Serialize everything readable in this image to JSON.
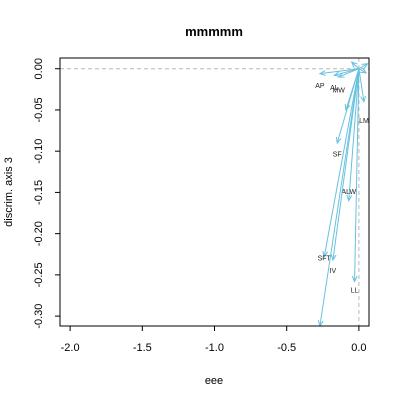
{
  "chart_data": {
    "type": "vector-biplot",
    "title": "mmmmm",
    "xlabel": "eee",
    "ylabel": "discrim. axis 3",
    "xlim": [
      -2.07,
      0.07
    ],
    "ylim": [
      -0.312,
      0.013
    ],
    "xticks": [
      {
        "value": -2.0,
        "label": "-2.0"
      },
      {
        "value": -1.5,
        "label": "-1.5"
      },
      {
        "value": -1.0,
        "label": "-1.0"
      },
      {
        "value": -0.5,
        "label": "-0.5"
      },
      {
        "value": 0.0,
        "label": "0.0"
      }
    ],
    "yticks": [
      {
        "value": 0.0,
        "label": "0.00"
      },
      {
        "value": -0.05,
        "label": "-0.05"
      },
      {
        "value": -0.1,
        "label": "-0.10"
      },
      {
        "value": -0.15,
        "label": "-0.15"
      },
      {
        "value": -0.2,
        "label": "-0.20"
      },
      {
        "value": -0.25,
        "label": "-0.25"
      },
      {
        "value": -0.3,
        "label": "-0.30"
      }
    ],
    "origin": {
      "x": 0.0,
      "y": 0.0
    },
    "reference_lines": {
      "x": 0.0,
      "y": 0.0
    },
    "vectors": [
      {
        "name": "AP",
        "x": -0.27,
        "y": -0.006,
        "label": "AP",
        "label_x": -0.27,
        "label_y": -0.02
      },
      {
        "name": "AL",
        "x": -0.17,
        "y": -0.008,
        "label": "AL",
        "label_x": -0.17,
        "label_y": -0.022
      },
      {
        "name": "MW",
        "x": -0.14,
        "y": -0.01,
        "label": "MW",
        "label_x": -0.14,
        "label_y": -0.025
      },
      {
        "name": "LM",
        "x": 0.035,
        "y": -0.04,
        "label": "LM",
        "label_x": 0.035,
        "label_y": -0.062
      },
      {
        "name": "SF",
        "x": -0.15,
        "y": -0.09,
        "label": "SF",
        "label_x": -0.15,
        "label_y": -0.103
      },
      {
        "name": "ALW",
        "x": -0.07,
        "y": -0.16,
        "label": "ALW",
        "label_x": -0.07,
        "label_y": -0.148
      },
      {
        "name": "SFT",
        "x": -0.24,
        "y": -0.228,
        "label": "SFT",
        "label_x": -0.24,
        "label_y": -0.229
      },
      {
        "name": "IV",
        "x": -0.18,
        "y": -0.232,
        "label": "IV",
        "label_x": -0.18,
        "label_y": -0.244
      },
      {
        "name": "LL",
        "x": -0.03,
        "y": -0.258,
        "label": "LL",
        "label_x": -0.03,
        "label_y": -0.268
      },
      {
        "name": "V10",
        "x": -0.27,
        "y": -0.312,
        "label": "",
        "label_x": -0.27,
        "label_y": -0.312
      },
      {
        "name": "V11",
        "x": -0.09,
        "y": -0.05,
        "label": "",
        "label_x": -0.09,
        "label_y": -0.05
      },
      {
        "name": "V12",
        "x": 0.05,
        "y": -0.005,
        "label": "",
        "label_x": 0.05,
        "label_y": -0.005
      },
      {
        "name": "V13",
        "x": -0.05,
        "y": 0.008,
        "label": "",
        "label_x": -0.05,
        "label_y": 0.008
      },
      {
        "name": "V14",
        "x": 0.06,
        "y": 0.006,
        "label": "",
        "label_x": 0.06,
        "label_y": 0.006
      }
    ],
    "colors": {
      "vector": "#67c1e0",
      "reference": "#b8b8b8",
      "frame": "#000000"
    },
    "grid": false,
    "legend": "none"
  }
}
